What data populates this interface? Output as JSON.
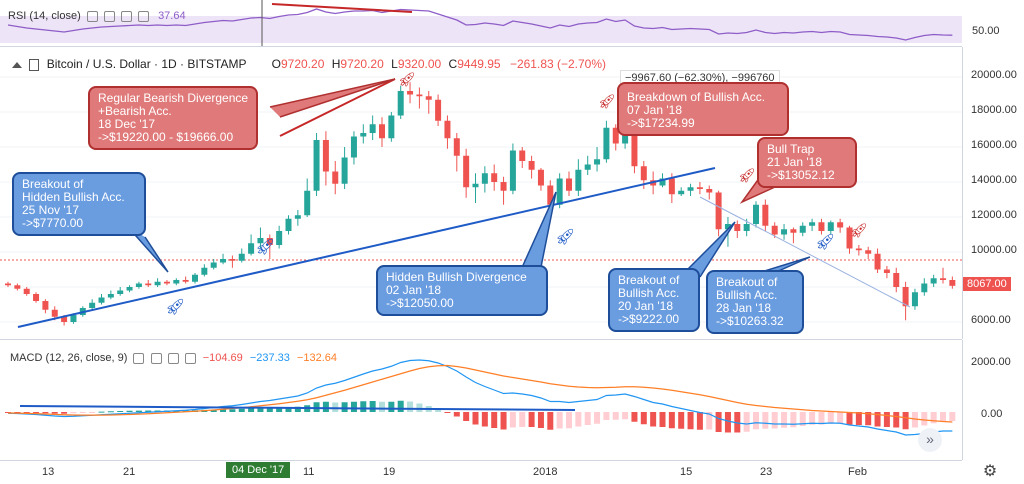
{
  "rsi": {
    "title": "RSI (14, close)",
    "value": "37.64",
    "axis_label": "50.00"
  },
  "header": {
    "symbol": "Bitcoin / U.S. Dollar · 1D · BITSTAMP",
    "open_label": "O",
    "open": "9720.20",
    "high_label": "H",
    "high": "9720.20",
    "low_label": "L",
    "low": "9320.00",
    "close_label": "C",
    "close": "9449.95",
    "change": "−261.83 (−2.70%)",
    "measure": "−9967.60 (−62.30%), −996760"
  },
  "price_axis": [
    "20000.00",
    "18000.00",
    "16000.00",
    "14000.00",
    "12000.00",
    "10000.00",
    "6000.00"
  ],
  "last_price": "8067.00",
  "macd": {
    "title": "MACD (12, 26, close, 9)",
    "v1": "−104.69",
    "v2": "−237.33",
    "v3": "−132.64",
    "axis": [
      "2000.00",
      "0.00"
    ]
  },
  "time_axis": [
    "13",
    "21",
    "11",
    "19",
    "2018",
    "15",
    "23",
    "Feb"
  ],
  "date_highlight": "04 Dec '17",
  "annotations": {
    "bear_div": [
      "Regular Bearish Divergence",
      "+Bearish Acc.",
      "18 Dec '17",
      "->$19220.00 - $19666.00"
    ],
    "breakout_hidden": [
      "Breakout of",
      "Hidden Bullish Acc.",
      "25 Nov '17",
      "->$7770.00"
    ],
    "hidden_div": [
      "Hidden Bullish Divergence",
      "02 Jan '18",
      "->$12050.00"
    ],
    "breakdown": [
      "Breakdown of Bullish Acc.",
      "07 Jan '18",
      "->$17234.99"
    ],
    "bull_trap": [
      "Bull Trap",
      "21 Jan '18",
      "->$13052.12"
    ],
    "breakout_20": [
      "Breakout of",
      "Bullish Acc.",
      "20 Jan '18",
      "->$9222.00"
    ],
    "breakout_28": [
      "Breakout of",
      "Bullish Acc.",
      "28 Jan '18",
      "->$10263.32"
    ]
  },
  "colors": {
    "up": "#26a69a",
    "down": "#ef5350",
    "rsi": "#8e5dc8",
    "trend": "#1e5bc6",
    "bear": "#c62828"
  },
  "candles": [
    [
      8200,
      8100,
      8300,
      8000
    ],
    [
      8100,
      7900,
      8200,
      7800
    ],
    [
      7900,
      7600,
      8000,
      7500
    ],
    [
      7600,
      7200,
      7700,
      7100
    ],
    [
      7200,
      6700,
      7300,
      6500
    ],
    [
      6700,
      6300,
      6900,
      6100
    ],
    [
      6300,
      6000,
      6400,
      5800
    ],
    [
      6000,
      6400,
      6500,
      5900
    ],
    [
      6400,
      6800,
      6900,
      6300
    ],
    [
      6800,
      7100,
      7300,
      6700
    ],
    [
      7100,
      7400,
      7600,
      7000
    ],
    [
      7400,
      7600,
      7800,
      7300
    ],
    [
      7600,
      7800,
      8000,
      7500
    ],
    [
      7800,
      8000,
      8100,
      7700
    ],
    [
      8000,
      8200,
      8300,
      7900
    ],
    [
      8200,
      8100,
      8400,
      8000
    ],
    [
      8100,
      8300,
      8500,
      8000
    ],
    [
      8300,
      8200,
      8400,
      8100
    ],
    [
      8200,
      8400,
      8500,
      8100
    ],
    [
      8400,
      8300,
      8600,
      8200
    ],
    [
      8300,
      8700,
      8800,
      8200
    ],
    [
      8700,
      9100,
      9300,
      8600
    ],
    [
      9100,
      9400,
      9600,
      9000
    ],
    [
      9400,
      9600,
      9900,
      9300
    ],
    [
      9600,
      9500,
      9800,
      9100
    ],
    [
      9500,
      9900,
      10200,
      9400
    ],
    [
      9900,
      10500,
      11000,
      9800
    ],
    [
      10500,
      10800,
      11400,
      10200
    ],
    [
      10800,
      10400,
      11000,
      9600
    ],
    [
      10400,
      11200,
      11500,
      10200
    ],
    [
      11200,
      11900,
      12100,
      11000
    ],
    [
      11900,
      12100,
      12400,
      11500
    ],
    [
      12100,
      13500,
      14200,
      12000
    ],
    [
      13500,
      16400,
      16800,
      13200
    ],
    [
      16400,
      14600,
      16900,
      13800
    ],
    [
      14600,
      13900,
      15200,
      13300
    ],
    [
      13900,
      15400,
      16000,
      13600
    ],
    [
      15400,
      16600,
      16900,
      15000
    ],
    [
      16600,
      16800,
      17300,
      16200
    ],
    [
      16800,
      17300,
      17800,
      16400
    ],
    [
      17300,
      16500,
      17700,
      16000
    ],
    [
      16500,
      17800,
      18000,
      16300
    ],
    [
      17800,
      19200,
      19500,
      17600
    ],
    [
      19200,
      19000,
      19700,
      18500
    ],
    [
      19000,
      18900,
      19400,
      18200
    ],
    [
      18900,
      18700,
      19200,
      17900
    ],
    [
      18700,
      17500,
      19000,
      17200
    ],
    [
      17500,
      16500,
      17800,
      15900
    ],
    [
      16500,
      15500,
      16800,
      14600
    ],
    [
      15500,
      13700,
      15900,
      13100
    ],
    [
      13700,
      13900,
      14500,
      12800
    ],
    [
      13900,
      14500,
      14900,
      13400
    ],
    [
      14500,
      14000,
      15000,
      13500
    ],
    [
      14000,
      13500,
      14300,
      12700
    ],
    [
      13500,
      15800,
      16200,
      13300
    ],
    [
      15800,
      15200,
      16000,
      14800
    ],
    [
      15200,
      14700,
      15500,
      14200
    ],
    [
      14700,
      13800,
      14800,
      13500
    ],
    [
      13800,
      12700,
      14100,
      12200
    ],
    [
      12700,
      14200,
      14500,
      12500
    ],
    [
      14200,
      13500,
      14600,
      13200
    ],
    [
      13500,
      14700,
      15300,
      13200
    ],
    [
      14700,
      15000,
      15500,
      14400
    ],
    [
      15000,
      15300,
      16000,
      14600
    ],
    [
      15300,
      17100,
      17500,
      15100
    ],
    [
      17100,
      16200,
      17300,
      15800
    ],
    [
      16200,
      17200,
      17400,
      15900
    ],
    [
      17200,
      14900,
      17400,
      14500
    ],
    [
      14900,
      14100,
      15200,
      13600
    ],
    [
      14100,
      13800,
      14600,
      13300
    ],
    [
      13800,
      14200,
      14500,
      13700
    ],
    [
      14200,
      13300,
      14500,
      12800
    ],
    [
      13300,
      13500,
      13700,
      13200
    ],
    [
      13500,
      13700,
      13900,
      13200
    ],
    [
      13700,
      13600,
      14000,
      13300
    ],
    [
      13600,
      13400,
      13800,
      13000
    ],
    [
      13400,
      11300,
      13500,
      10900
    ],
    [
      11300,
      11600,
      12000,
      10300
    ],
    [
      11600,
      11200,
      11800,
      10800
    ],
    [
      11200,
      11600,
      11900,
      10900
    ],
    [
      11600,
      12700,
      12900,
      11400
    ],
    [
      12700,
      11500,
      13000,
      11200
    ],
    [
      11500,
      11000,
      11700,
      10800
    ],
    [
      11000,
      11300,
      11600,
      10700
    ],
    [
      11300,
      11100,
      11400,
      10500
    ],
    [
      11100,
      11500,
      11700,
      10900
    ],
    [
      11500,
      11700,
      11900,
      11200
    ],
    [
      11700,
      11200,
      11900,
      11000
    ],
    [
      11200,
      11700,
      11800,
      11000
    ],
    [
      11700,
      11400,
      11900,
      11100
    ],
    [
      11400,
      10200,
      11500,
      9900
    ],
    [
      10200,
      10100,
      10400,
      9800
    ],
    [
      10100,
      9900,
      10300,
      9600
    ],
    [
      9900,
      9000,
      10200,
      8800
    ],
    [
      9000,
      8800,
      9200,
      8500
    ],
    [
      8800,
      8000,
      9100,
      7700
    ],
    [
      8000,
      6900,
      8300,
      6100
    ],
    [
      6900,
      7700,
      7900,
      6700
    ],
    [
      7700,
      8200,
      8500,
      7500
    ],
    [
      8200,
      8500,
      8700,
      8000
    ],
    [
      8500,
      8400,
      9100,
      8200
    ],
    [
      8400,
      8067,
      8600,
      7900
    ]
  ],
  "rsi_series": [
    58,
    55,
    52,
    50,
    48,
    46,
    44,
    47,
    50,
    52,
    54,
    55,
    56,
    57,
    58,
    57,
    58,
    57,
    58,
    57,
    60,
    63,
    65,
    67,
    66,
    69,
    72,
    73,
    71,
    75,
    78,
    79,
    83,
    90,
    84,
    81,
    84,
    86,
    86,
    87,
    83,
    86,
    89,
    88,
    87,
    86,
    80,
    74,
    68,
    58,
    59,
    62,
    60,
    57,
    66,
    63,
    60,
    56,
    52,
    58,
    55,
    60,
    62,
    63,
    70,
    65,
    68,
    56,
    52,
    51,
    53,
    49,
    50,
    51,
    50,
    49,
    40,
    42,
    41,
    43,
    48,
    43,
    41,
    43,
    42,
    44,
    45,
    43,
    45,
    44,
    39,
    38,
    37,
    35,
    34,
    32,
    28,
    33,
    37,
    39,
    38,
    37.64
  ],
  "macd_series": [
    -50,
    -60,
    -80,
    -100,
    -130,
    -160,
    -180,
    -170,
    -150,
    -130,
    -110,
    -90,
    -70,
    -50,
    -30,
    -10,
    10,
    30,
    50,
    70,
    100,
    140,
    180,
    220,
    250,
    300,
    360,
    420,
    460,
    520,
    580,
    640,
    760,
    960,
    1080,
    1150,
    1260,
    1390,
    1520,
    1640,
    1720,
    1830,
    1980,
    2060,
    2080,
    2050,
    1960,
    1820,
    1640,
    1400,
    1180,
    1020,
    880,
    740,
    760,
    720,
    660,
    560,
    420,
    420,
    380,
    420,
    460,
    500,
    660,
    680,
    720,
    620,
    500,
    380,
    320,
    220,
    140,
    60,
    -20,
    -80,
    -260,
    -360,
    -440,
    -480,
    -430,
    -450,
    -480,
    -480,
    -490,
    -470,
    -450,
    -460,
    -440,
    -450,
    -520,
    -560,
    -600,
    -680,
    -740,
    -800,
    -920,
    -900,
    -860,
    -800,
    -760,
    -760
  ],
  "signal_series": [
    -40,
    -45,
    -55,
    -65,
    -80,
    -95,
    -110,
    -120,
    -125,
    -125,
    -125,
    -120,
    -110,
    -100,
    -85,
    -70,
    -50,
    -30,
    -10,
    10,
    30,
    55,
    80,
    110,
    140,
    170,
    210,
    250,
    290,
    330,
    380,
    430,
    490,
    570,
    670,
    770,
    870,
    980,
    1090,
    1200,
    1310,
    1420,
    1530,
    1640,
    1740,
    1810,
    1850,
    1860,
    1820,
    1760,
    1680,
    1600,
    1520,
    1440,
    1380,
    1320,
    1260,
    1200,
    1130,
    1080,
    1030,
    1000,
    980,
    970,
    980,
    990,
    1010,
    1010,
    990,
    960,
    920,
    870,
    810,
    750,
    690,
    620,
    540,
    460,
    380,
    310,
    260,
    220,
    180,
    150,
    120,
    90,
    60,
    40,
    20,
    0,
    -20,
    -40,
    -70,
    -100,
    -140,
    -180,
    -230,
    -280,
    -320,
    -350,
    -380,
    -400
  ]
}
